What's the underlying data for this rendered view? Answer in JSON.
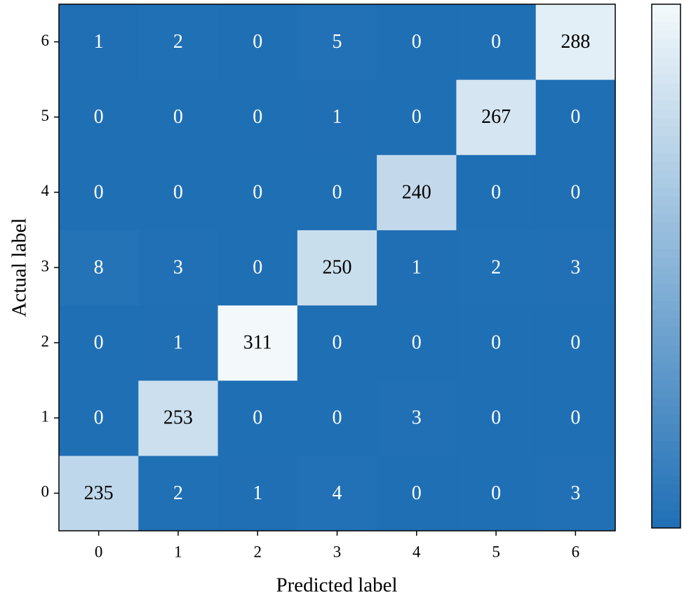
{
  "chart_data": {
    "type": "heatmap",
    "x_label": "Predicted label",
    "y_label": "Actual label",
    "x_categories": [
      "0",
      "1",
      "2",
      "3",
      "4",
      "5",
      "6"
    ],
    "y_categories": [
      "0",
      "1",
      "2",
      "3",
      "4",
      "5",
      "6"
    ],
    "z": [
      [
        235,
        2,
        1,
        4,
        0,
        0,
        3
      ],
      [
        0,
        253,
        0,
        0,
        3,
        0,
        0
      ],
      [
        0,
        1,
        311,
        0,
        0,
        0,
        0
      ],
      [
        8,
        3,
        0,
        250,
        1,
        2,
        3
      ],
      [
        0,
        0,
        0,
        0,
        240,
        0,
        0
      ],
      [
        0,
        0,
        0,
        1,
        0,
        267,
        0
      ],
      [
        1,
        2,
        0,
        5,
        0,
        0,
        288
      ]
    ],
    "colormap": [
      "#1f6fb5",
      "#f3f9fb"
    ],
    "colorbar": true
  }
}
